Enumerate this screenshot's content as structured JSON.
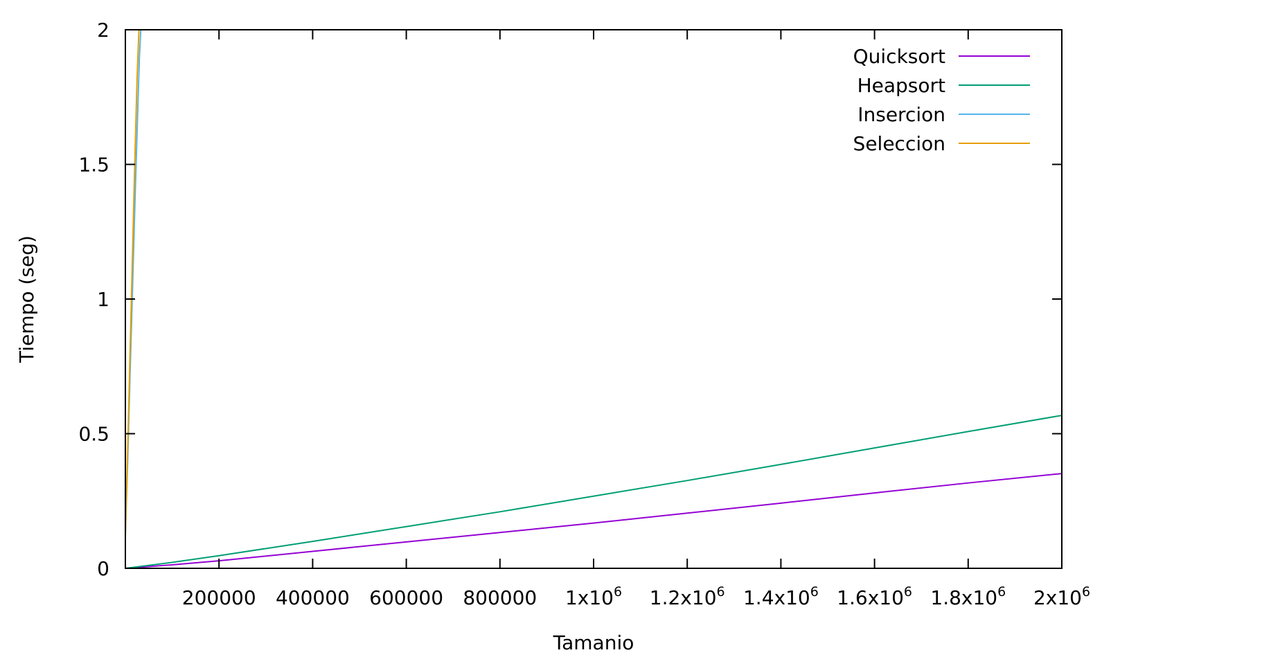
{
  "chart_data": {
    "type": "line",
    "xlabel": "Tamanio",
    "ylabel": "Tiempo (seg)",
    "xlim": [
      0,
      2000000
    ],
    "ylim": [
      0,
      2
    ],
    "grid": false,
    "legend_position": "top-right",
    "x_ticks": [
      {
        "value": 200000,
        "base": "200000",
        "exp": ""
      },
      {
        "value": 400000,
        "base": "400000",
        "exp": ""
      },
      {
        "value": 600000,
        "base": "600000",
        "exp": ""
      },
      {
        "value": 800000,
        "base": "800000",
        "exp": ""
      },
      {
        "value": 1000000,
        "base": "1x10",
        "exp": "6"
      },
      {
        "value": 1200000,
        "base": "1.2x10",
        "exp": "6"
      },
      {
        "value": 1400000,
        "base": "1.4x10",
        "exp": "6"
      },
      {
        "value": 1600000,
        "base": "1.6x10",
        "exp": "6"
      },
      {
        "value": 1800000,
        "base": "1.8x10",
        "exp": "6"
      },
      {
        "value": 2000000,
        "base": "2x10",
        "exp": "6"
      }
    ],
    "y_ticks": [
      {
        "value": 0,
        "label": "0"
      },
      {
        "value": 0.5,
        "label": "0.5"
      },
      {
        "value": 1,
        "label": "1"
      },
      {
        "value": 1.5,
        "label": "1.5"
      },
      {
        "value": 2,
        "label": "2"
      }
    ],
    "series": [
      {
        "name": "Quicksort",
        "color": "#9400d3",
        "x": [
          0,
          100000,
          200000,
          400000,
          600000,
          800000,
          1000000,
          1200000,
          1400000,
          1600000,
          1800000,
          2000000
        ],
        "y": [
          0,
          0.013,
          0.028,
          0.063,
          0.098,
          0.133,
          0.168,
          0.205,
          0.242,
          0.28,
          0.317,
          0.352
        ]
      },
      {
        "name": "Heapsort",
        "color": "#009e73",
        "x": [
          0,
          100000,
          200000,
          400000,
          600000,
          800000,
          1000000,
          1200000,
          1400000,
          1600000,
          1800000,
          2000000
        ],
        "y": [
          0,
          0.022,
          0.047,
          0.1,
          0.155,
          0.21,
          0.268,
          0.326,
          0.386,
          0.447,
          0.508,
          0.568
        ]
      },
      {
        "name": "Insercion",
        "color": "#56b4e9",
        "x": [
          0,
          5000,
          10000,
          15000,
          20000,
          25000,
          30000,
          33000
        ],
        "y": [
          0.12,
          0.4,
          0.72,
          1.02,
          1.33,
          1.62,
          1.9,
          2.0
        ]
      },
      {
        "name": "Seleccion",
        "color": "#e69f00",
        "x": [
          0,
          5000,
          10000,
          15000,
          20000,
          25000,
          29000
        ],
        "y": [
          0.12,
          0.45,
          0.8,
          1.15,
          1.5,
          1.82,
          2.0
        ]
      }
    ]
  }
}
